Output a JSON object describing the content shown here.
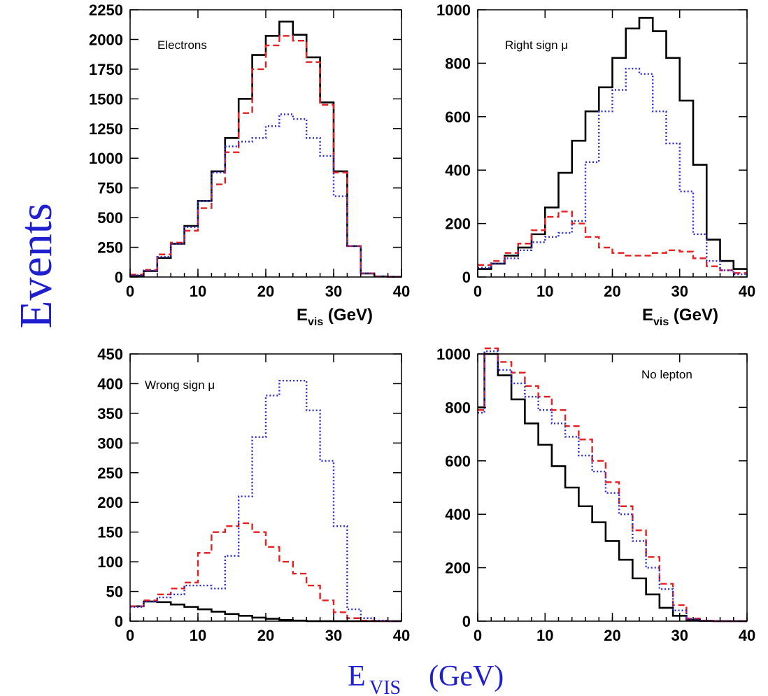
{
  "figure": {
    "y_label": "Events",
    "x_label_main": "E",
    "x_label_sub": "VIS",
    "x_label_unit": "(GeV)"
  },
  "colors": {
    "series_1": "#000000",
    "series_2": "#e62020",
    "series_3": "#2a2ad8",
    "big_labels": "#1f1fd0"
  },
  "chart_data": [
    {
      "type": "line",
      "step": true,
      "title": "Electrons",
      "xlabel_main": "E",
      "xlabel_sub": "vis",
      "xlabel_unit": "(GeV)",
      "xlim": [
        0,
        40
      ],
      "ylim": [
        0,
        2250
      ],
      "xticks": [
        0,
        10,
        20,
        30,
        40
      ],
      "yticks": [
        0,
        250,
        500,
        750,
        1000,
        1250,
        1500,
        1750,
        2000,
        2250
      ],
      "bin_edges": [
        0,
        2,
        4,
        6,
        8,
        10,
        12,
        14,
        16,
        18,
        20,
        22,
        24,
        26,
        28,
        30,
        32,
        34,
        36,
        38,
        40
      ],
      "series": [
        {
          "style": "solid",
          "color": "#000000",
          "values": [
            10,
            50,
            160,
            280,
            430,
            640,
            890,
            1170,
            1500,
            1870,
            2030,
            2150,
            2040,
            1850,
            1470,
            890,
            260,
            30,
            5,
            2
          ]
        },
        {
          "style": "dashed",
          "color": "#e62020",
          "values": [
            20,
            60,
            190,
            290,
            390,
            580,
            780,
            1050,
            1380,
            1750,
            1950,
            2030,
            1990,
            1810,
            1450,
            880,
            260,
            30,
            5,
            2
          ]
        },
        {
          "style": "dotted",
          "color": "#2a2ad8",
          "values": [
            15,
            55,
            170,
            280,
            420,
            640,
            880,
            1100,
            1140,
            1170,
            1270,
            1370,
            1330,
            1170,
            1020,
            680,
            260,
            30,
            5,
            2
          ]
        }
      ]
    },
    {
      "type": "line",
      "step": true,
      "title": "Right sign μ",
      "xlabel_main": "E",
      "xlabel_sub": "vis",
      "xlabel_unit": "(GeV)",
      "xlim": [
        0,
        40
      ],
      "ylim": [
        0,
        1000
      ],
      "xticks": [
        0,
        10,
        20,
        30,
        40
      ],
      "yticks": [
        0,
        200,
        400,
        600,
        800,
        1000
      ],
      "bin_edges": [
        0,
        2,
        4,
        6,
        8,
        10,
        12,
        14,
        16,
        18,
        20,
        22,
        24,
        26,
        28,
        30,
        32,
        34,
        36,
        38,
        40
      ],
      "series": [
        {
          "style": "solid",
          "color": "#000000",
          "values": [
            30,
            50,
            80,
            110,
            160,
            260,
            390,
            510,
            620,
            710,
            820,
            930,
            970,
            920,
            820,
            660,
            420,
            140,
            60,
            30
          ]
        },
        {
          "style": "dashed",
          "color": "#e62020",
          "values": [
            45,
            60,
            90,
            125,
            175,
            225,
            245,
            200,
            150,
            110,
            90,
            80,
            80,
            90,
            100,
            95,
            70,
            40,
            25,
            15
          ]
        },
        {
          "style": "dotted",
          "color": "#2a2ad8",
          "values": [
            35,
            50,
            70,
            100,
            130,
            150,
            165,
            210,
            430,
            620,
            700,
            780,
            760,
            620,
            500,
            320,
            160,
            60,
            25,
            10
          ]
        }
      ]
    },
    {
      "type": "line",
      "step": true,
      "title": "Wrong sign μ",
      "xlabel_main": "",
      "xlim": [
        0,
        40
      ],
      "ylim": [
        0,
        450
      ],
      "xticks": [
        0,
        10,
        20,
        30,
        40
      ],
      "yticks": [
        0,
        50,
        100,
        150,
        200,
        250,
        300,
        350,
        400,
        450
      ],
      "bin_edges": [
        0,
        2,
        4,
        6,
        8,
        10,
        12,
        14,
        16,
        18,
        20,
        22,
        24,
        26,
        28,
        30,
        32,
        34,
        36,
        38,
        40
      ],
      "series": [
        {
          "style": "solid",
          "color": "#000000",
          "values": [
            25,
            33,
            32,
            28,
            24,
            20,
            16,
            12,
            9,
            6,
            4,
            2,
            1,
            0,
            0,
            0,
            0,
            0,
            0,
            0
          ]
        },
        {
          "style": "dashed",
          "color": "#e62020",
          "values": [
            25,
            35,
            45,
            55,
            65,
            115,
            150,
            160,
            165,
            150,
            125,
            100,
            80,
            60,
            35,
            15,
            5,
            1,
            0,
            0
          ]
        },
        {
          "style": "dotted",
          "color": "#2a2ad8",
          "values": [
            24,
            33,
            40,
            45,
            60,
            60,
            55,
            110,
            210,
            310,
            380,
            405,
            405,
            355,
            270,
            160,
            20,
            5,
            1,
            0
          ]
        }
      ]
    },
    {
      "type": "line",
      "step": true,
      "title": "No lepton",
      "xlabel_main": "",
      "xlim": [
        0,
        40
      ],
      "ylim": [
        0,
        1000
      ],
      "xticks": [
        0,
        10,
        20,
        30,
        40
      ],
      "yticks": [
        0,
        200,
        400,
        600,
        800,
        1000
      ],
      "bin_edges": [
        0,
        1,
        3,
        5,
        7,
        9,
        11,
        13,
        15,
        17,
        19,
        21,
        23,
        25,
        27,
        29,
        31,
        33,
        35,
        37,
        40
      ],
      "series": [
        {
          "style": "solid",
          "color": "#000000",
          "values": [
            800,
            1000,
            920,
            830,
            740,
            660,
            580,
            500,
            430,
            370,
            300,
            230,
            160,
            100,
            50,
            20,
            5,
            1,
            0,
            0
          ]
        },
        {
          "style": "dashed",
          "color": "#e62020",
          "values": [
            790,
            1030,
            970,
            930,
            880,
            840,
            790,
            730,
            680,
            600,
            520,
            430,
            340,
            240,
            140,
            60,
            10,
            2,
            0,
            0
          ]
        },
        {
          "style": "dotted",
          "color": "#2a2ad8",
          "values": [
            780,
            1010,
            940,
            890,
            840,
            790,
            740,
            690,
            620,
            560,
            480,
            400,
            300,
            200,
            120,
            40,
            8,
            2,
            0,
            0
          ]
        }
      ]
    }
  ]
}
